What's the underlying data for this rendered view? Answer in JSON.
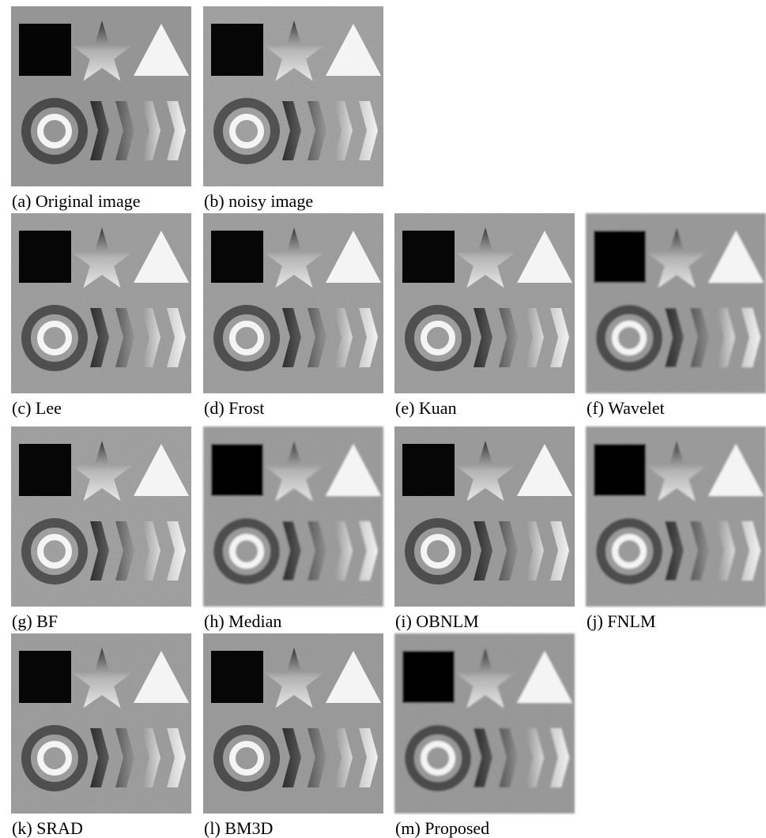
{
  "figure": {
    "panels": [
      {
        "caption": "(a) Original image"
      },
      {
        "caption": "(b) noisy image"
      },
      {
        "caption": "(c) Lee"
      },
      {
        "caption": "(d) Frost"
      },
      {
        "caption": "(e) Kuan"
      },
      {
        "caption": "(f) Wavelet"
      },
      {
        "caption": "(g) BF"
      },
      {
        "caption": "(h) Median"
      },
      {
        "caption": "(i) OBNLM"
      },
      {
        "caption": "(j) FNLM"
      },
      {
        "caption": "(k) SRAD"
      },
      {
        "caption": "(l) BM3D"
      },
      {
        "caption": "(m) Proposed"
      }
    ]
  }
}
